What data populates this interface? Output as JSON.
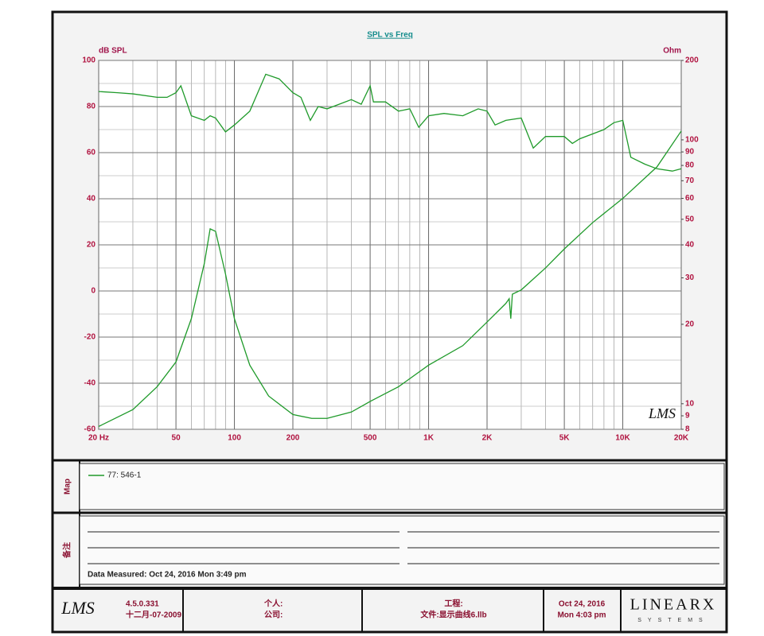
{
  "chart_data": {
    "type": "line",
    "title": "SPL vs Freq",
    "y_label": "dB SPL",
    "y2_label": "Ohm",
    "watermark": "LMS",
    "log_x": true,
    "log_y2": true,
    "grid": true,
    "xlim": [
      20,
      20000
    ],
    "xticks": [
      {
        "value": 20,
        "label": "20 Hz"
      },
      50,
      100,
      200,
      500,
      {
        "value": 1000,
        "label": "1K"
      },
      {
        "value": 2000,
        "label": "2K"
      },
      {
        "value": 5000,
        "label": "5K"
      },
      {
        "value": 10000,
        "label": "10K"
      },
      {
        "value": 20000,
        "label": "20K"
      }
    ],
    "xminorticks": [
      30,
      40,
      60,
      70,
      80,
      90,
      300,
      400,
      600,
      700,
      800,
      900,
      3000,
      4000,
      6000,
      7000,
      8000,
      9000
    ],
    "ylim": [
      -60,
      100
    ],
    "yticks": [
      -60,
      -40,
      -20,
      0,
      20,
      40,
      60,
      80,
      100
    ],
    "yminorticks": [
      -50,
      -30,
      -10,
      10,
      30,
      50,
      70,
      90
    ],
    "y2lim": [
      8,
      200
    ],
    "y2ticks": [
      8,
      9,
      10,
      20,
      30,
      40,
      50,
      60,
      70,
      80,
      90,
      100,
      200
    ],
    "series": [
      {
        "name": "77: 546-1",
        "color": "#1f9a2a",
        "x": [
          20,
          25,
          30,
          40,
          45,
          50,
          53,
          60,
          70,
          75,
          80,
          90,
          100,
          120,
          145,
          170,
          200,
          220,
          246,
          270,
          300,
          400,
          450,
          500,
          520,
          600,
          700,
          800,
          890,
          1000,
          1200,
          1500,
          1800,
          2000,
          2200,
          2500,
          3000,
          3460,
          4000,
          5000,
          5500,
          6000,
          8000,
          9000,
          10000,
          11000,
          13000,
          15000,
          18000,
          20000
        ],
        "values": [
          86.5,
          86,
          85.5,
          84,
          84,
          86,
          89,
          76,
          74,
          76,
          75,
          69,
          72,
          78,
          94,
          92,
          86,
          84,
          74,
          80,
          79,
          83,
          81,
          89,
          82,
          82,
          78,
          79,
          71,
          76,
          77,
          76,
          79,
          78,
          72,
          74,
          75,
          62,
          67,
          67,
          64,
          66,
          70,
          73,
          74,
          58,
          55,
          53,
          52,
          53
        ]
      },
      {
        "color": "#1f9a2a",
        "axis": "y2",
        "x": [
          20,
          30,
          40,
          50,
          60,
          70,
          75,
          80,
          90,
          100,
          120,
          150,
          200,
          250,
          300,
          400,
          500,
          700,
          1000,
          1500,
          2000,
          2500,
          2600,
          2650,
          2700,
          3000,
          4000,
          5000,
          7000,
          10000,
          15000,
          20000
        ],
        "values": [
          8.2,
          9.5,
          11.6,
          14.4,
          21,
          34,
          46,
          45,
          31,
          21,
          14,
          10.7,
          9.1,
          8.8,
          8.8,
          9.3,
          10.2,
          11.6,
          14,
          16.6,
          20.4,
          24,
          25,
          21,
          26,
          27,
          32.7,
          38.6,
          48.6,
          60,
          79,
          108
        ]
      }
    ]
  },
  "map_panel": {
    "label": "Map"
  },
  "notes_panel": {
    "label": "备注",
    "measured": "Data Measured: Oct 24, 2016  Mon  3:49 pm"
  },
  "footer": {
    "logo": "LMS",
    "version": "4.5.0.331",
    "build_date": "十二月-07-2009",
    "person": "个人:",
    "company": "公司:",
    "project": "工程:",
    "file": "文件:显示曲线6.llb",
    "date": "Oct 24, 2016",
    "time": "Mon  4:03 pm",
    "brand": "LINEARX",
    "brand_sub": "SYSTEMS"
  }
}
